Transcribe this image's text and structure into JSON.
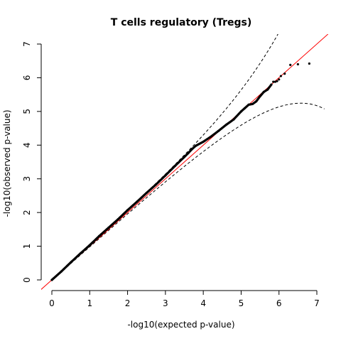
{
  "chart_data": {
    "type": "scatter",
    "title": "T cells regulatory (Tregs)",
    "xlabel": "-log10(expected p-value)",
    "ylabel": "-log10(observed p-value)",
    "xlim": [
      0,
      7
    ],
    "ylim": [
      0,
      7
    ],
    "x_ticks": [
      "0",
      "1",
      "2",
      "3",
      "4",
      "5",
      "6",
      "7"
    ],
    "y_ticks": [
      "0",
      "1",
      "2",
      "3",
      "4",
      "5",
      "6",
      "7"
    ],
    "grid": false,
    "legend": "none",
    "reference_line": {
      "slope": 1,
      "intercept": 0,
      "color": "#ff0000"
    },
    "confidence_band": {
      "style": "dashed",
      "color": "#000000"
    },
    "points": {
      "color": "#000000",
      "x": [
        0.0,
        0.25,
        0.5,
        0.75,
        1.0,
        1.25,
        1.5,
        1.75,
        2.0,
        2.25,
        2.5,
        2.75,
        3.0,
        3.25,
        3.5,
        3.6,
        3.7,
        3.8,
        4.0,
        4.2,
        4.4,
        4.6,
        4.8,
        5.0,
        5.1,
        5.2,
        5.3,
        5.4,
        5.5,
        5.6,
        5.7,
        5.8,
        5.85,
        5.9,
        5.95,
        6.0,
        6.05,
        6.15,
        6.3,
        6.5,
        6.8
      ],
      "y": [
        0.0,
        0.25,
        0.52,
        0.78,
        1.03,
        1.3,
        1.55,
        1.8,
        2.07,
        2.32,
        2.58,
        2.83,
        3.1,
        3.38,
        3.65,
        3.76,
        3.88,
        3.98,
        4.1,
        4.25,
        4.42,
        4.6,
        4.76,
        5.0,
        5.1,
        5.2,
        5.22,
        5.3,
        5.45,
        5.58,
        5.65,
        5.8,
        5.88,
        5.88,
        5.9,
        5.95,
        6.05,
        6.12,
        6.38,
        6.4,
        6.42
      ]
    }
  }
}
